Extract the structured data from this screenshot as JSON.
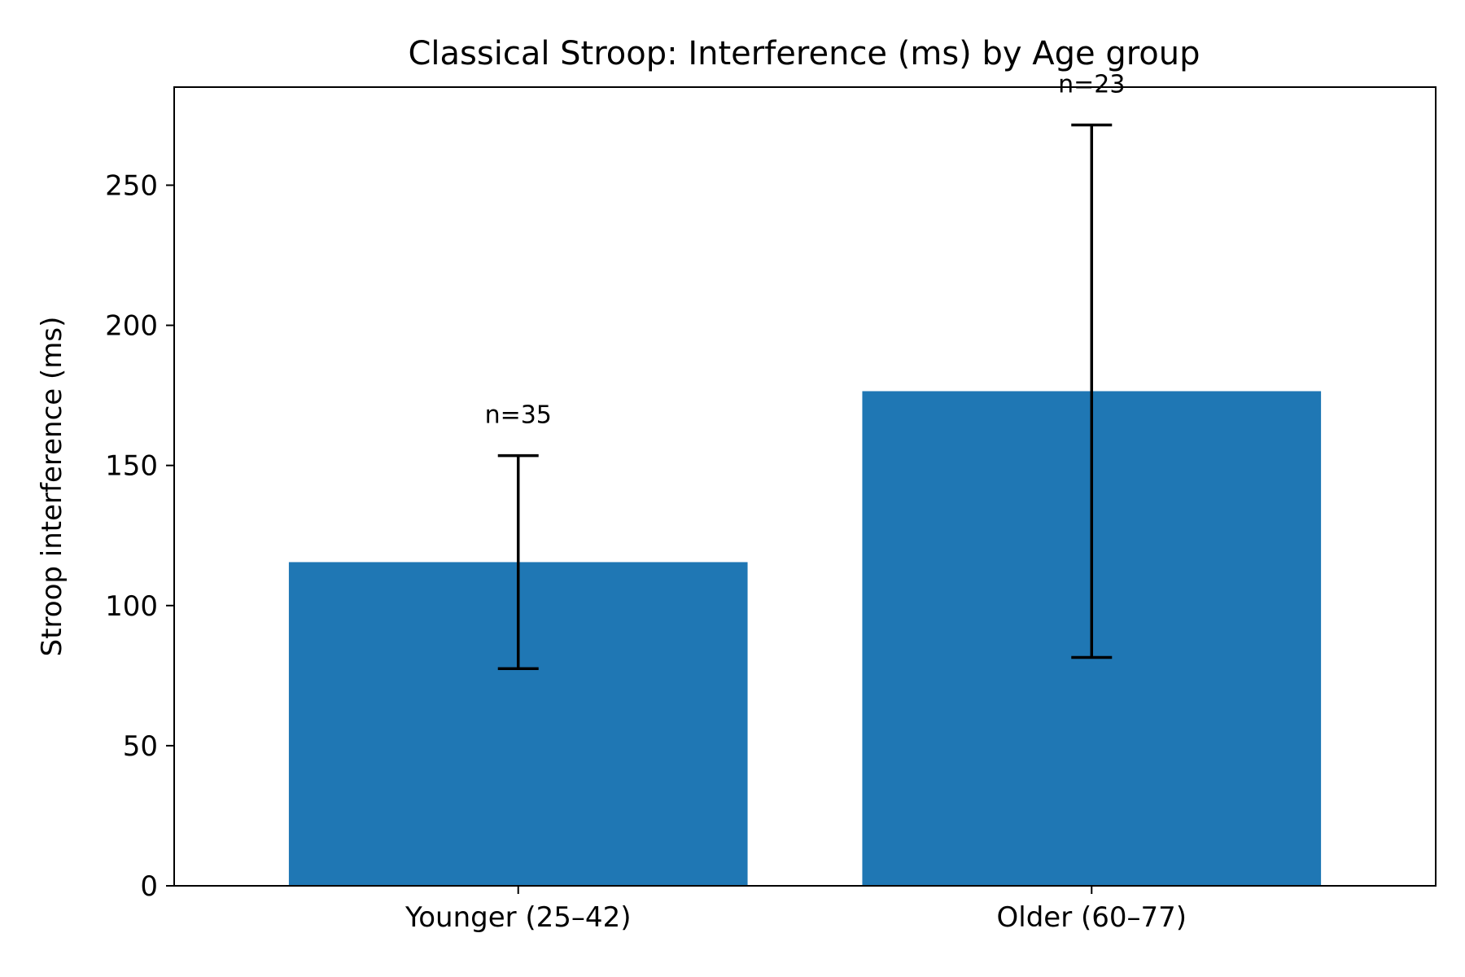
{
  "chart_data": {
    "type": "bar",
    "title": "Classical Stroop: Interference (ms) by Age group",
    "xlabel": "",
    "ylabel": "Stroop interference (ms)",
    "categories": [
      "Younger (25–42)",
      "Older (60–77)"
    ],
    "values": [
      115.5,
      176.5
    ],
    "error_low": [
      77.5,
      81.5
    ],
    "error_high": [
      153.5,
      271.5
    ],
    "annotations": [
      "n=35",
      "n=23"
    ],
    "ylim": [
      0,
      285
    ],
    "yticks": [
      0,
      50,
      100,
      150,
      200,
      250
    ],
    "grid": false,
    "bar_color": "#1f77b4",
    "errorbar_color": "#000000"
  }
}
